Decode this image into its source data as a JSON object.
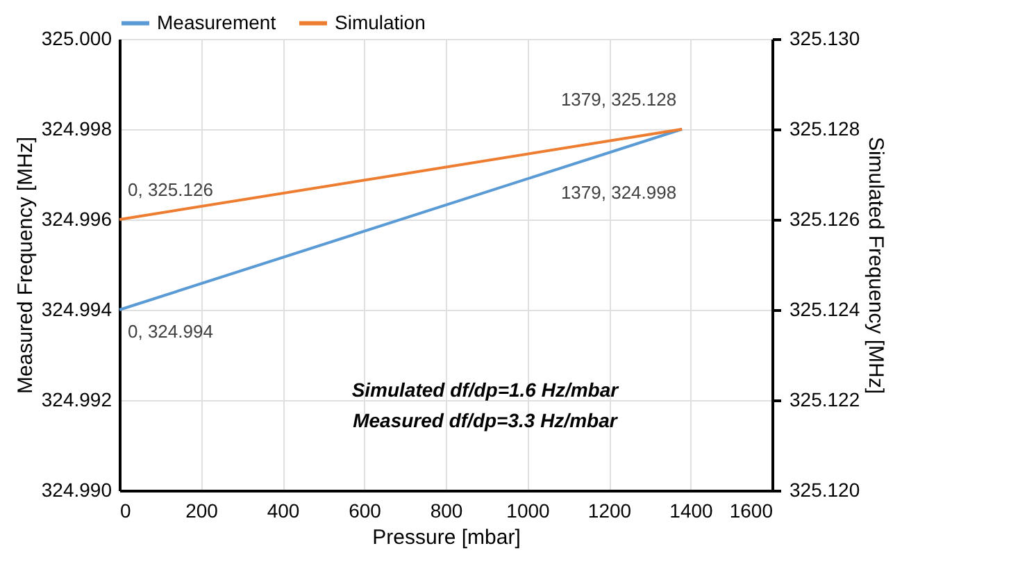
{
  "chart_data": {
    "type": "line",
    "xlabel": "Pressure [mbar]",
    "ylabel": "Measured Frequency [MHz]",
    "y2label": "Simulated Frequency [MHz]",
    "x": [
      0,
      1379
    ],
    "series": [
      {
        "name": "Measurement",
        "color": "#5b9bd5",
        "values": [
          324.994,
          324.998
        ],
        "value_labels": [
          "0, 324.994",
          "1379, 324.998"
        ]
      },
      {
        "name": "Simulation",
        "color": "#ed7d31",
        "values": [
          325.126,
          325.128
        ],
        "axis": "y2",
        "value_labels": [
          "0, 325.126",
          "1379, 325.128"
        ]
      }
    ],
    "xlim": [
      0,
      1600
    ],
    "xticks": [
      0,
      200,
      400,
      600,
      800,
      1000,
      1200,
      1400,
      1600
    ],
    "ylim": [
      324.99,
      325.0
    ],
    "yticks": [
      {
        "value": 324.99,
        "label": "324.990"
      },
      {
        "value": 324.992,
        "label": "324.992"
      },
      {
        "value": 324.994,
        "label": "324.994"
      },
      {
        "value": 324.996,
        "label": "324.996"
      },
      {
        "value": 324.998,
        "label": "324.998"
      },
      {
        "value": 325.0,
        "label": "325.000"
      }
    ],
    "y2lim": [
      325.12,
      325.13
    ],
    "y2ticks": [
      {
        "value": 325.12,
        "label": "325.120"
      },
      {
        "value": 325.122,
        "label": "325.122"
      },
      {
        "value": 325.124,
        "label": "325.124"
      },
      {
        "value": 325.126,
        "label": "325.126"
      },
      {
        "value": 325.128,
        "label": "325.128"
      },
      {
        "value": 325.13,
        "label": "325.130"
      }
    ],
    "annotations": [
      "Simulated df/dp=1.6 Hz/mbar",
      "Measured df/dp=3.3 Hz/mbar"
    ],
    "grid": true,
    "legend": "top",
    "marker": "none",
    "line_style": "solid"
  }
}
